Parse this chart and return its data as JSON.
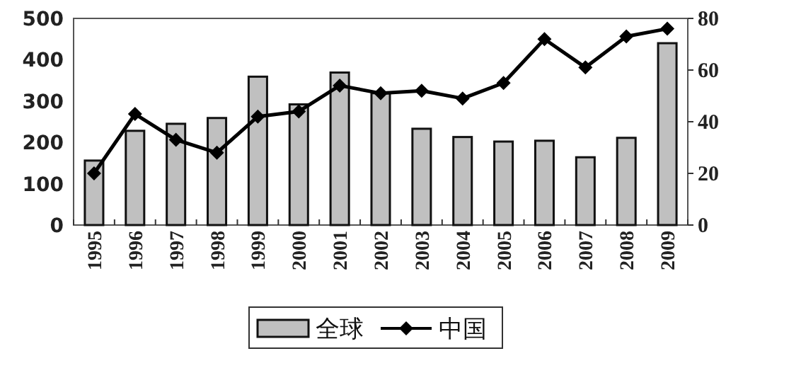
{
  "chart_data": {
    "type": "bar",
    "categories": [
      "1995",
      "1996",
      "1997",
      "1998",
      "1999",
      "2000",
      "2001",
      "2002",
      "2003",
      "2004",
      "2005",
      "2006",
      "2007",
      "2008",
      "2009"
    ],
    "series": [
      {
        "name": "全球",
        "color": "#c0c0c0",
        "values": [
          156,
          228,
          245,
          259,
          359,
          292,
          369,
          319,
          233,
          213,
          202,
          204,
          164,
          211,
          440
        ]
      },
      {
        "name": "中国",
        "type": "line",
        "axis": "y2",
        "color": "#000000",
        "values": [
          20,
          43,
          33,
          28,
          42,
          44,
          54,
          51,
          52,
          49,
          55,
          72,
          61,
          73,
          76
        ]
      }
    ],
    "ylim": [
      0,
      500
    ],
    "yticks": [
      0,
      100,
      200,
      300,
      400,
      500
    ],
    "y2lim": [
      0,
      80
    ],
    "y2ticks": [
      0,
      20,
      40,
      60,
      80
    ],
    "legend": "bottom",
    "marker": "diamond"
  }
}
